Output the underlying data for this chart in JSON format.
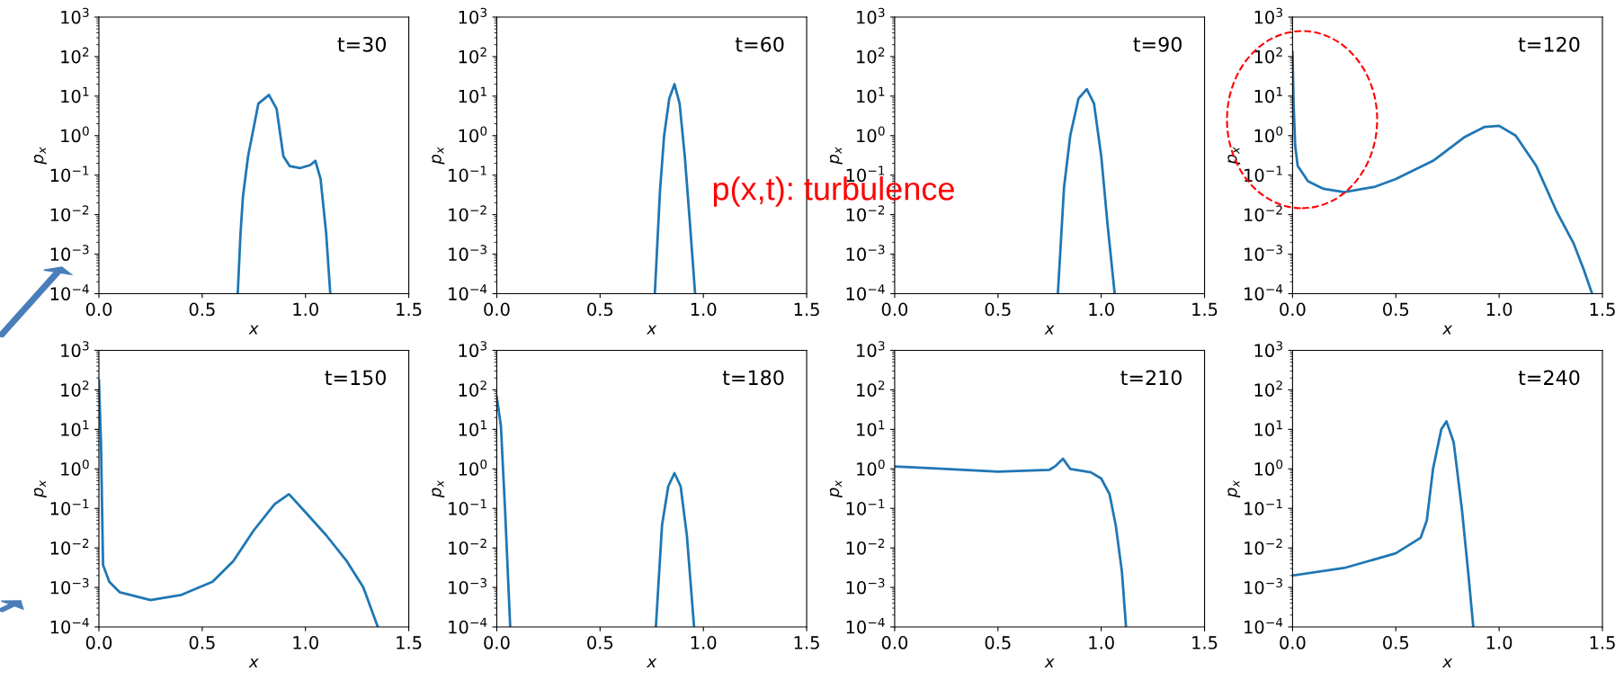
{
  "chart_data": [
    {
      "type": "line",
      "log": "y",
      "xlabel": "x",
      "ylabel": "p$_{x}$",
      "annotations": [
        "t=30"
      ],
      "xlim": [
        0,
        1.5
      ],
      "xticks": [
        {
          "value": 0,
          "label": "0.0"
        },
        {
          "value": 0.5,
          "label": "0.5"
        },
        {
          "value": 1.0,
          "label": "1.0"
        },
        {
          "value": 1.5,
          "label": "1.5"
        }
      ],
      "ylim": [
        0.0001,
        1000
      ],
      "yticks": [
        {
          "value": 0.0001,
          "label": "10$^{−4}$"
        },
        {
          "value": 0.001,
          "label": "10$^{−3}$"
        },
        {
          "value": 0.01,
          "label": "10$^{−2}$"
        },
        {
          "value": 0.1,
          "label": "10$^{−1}$"
        },
        {
          "value": 1,
          "label": "10$^{0}$"
        },
        {
          "value": 10,
          "label": "10$^{1}$"
        },
        {
          "value": 100,
          "label": "10$^{2}$"
        },
        {
          "value": 1000,
          "label": "10$^{3}$"
        }
      ],
      "series": [
        {
          "color": "#1f77b4",
          "x": [
            0.672,
            0.685,
            0.697,
            0.722,
            0.772,
            0.823,
            0.86,
            0.893,
            0.923,
            0.973,
            1.023,
            1.048,
            1.073,
            1.1,
            1.12
          ],
          "values": [
            0.0001,
            0.003,
            0.028,
            0.3,
            6.5,
            10.7,
            4.8,
            0.3,
            0.17,
            0.15,
            0.18,
            0.23,
            0.08,
            0.0034,
            0.0001
          ]
        }
      ]
    },
    {
      "type": "line",
      "log": "y",
      "xlabel": "x",
      "ylabel": "p$_{x}$",
      "annotations": [
        "t=60",
        "p(x,t): turbulence"
      ],
      "xlim": [
        0,
        1.5
      ],
      "xticks": [
        {
          "value": 0,
          "label": "0.0"
        },
        {
          "value": 0.5,
          "label": "0.5"
        },
        {
          "value": 1.0,
          "label": "1.0"
        },
        {
          "value": 1.5,
          "label": "1.5"
        }
      ],
      "ylim": [
        0.0001,
        1000
      ],
      "yticks": [
        {
          "value": 0.0001,
          "label": "10$^{−4}$"
        },
        {
          "value": 0.001,
          "label": "10$^{−3}$"
        },
        {
          "value": 0.01,
          "label": "10$^{−2}$"
        },
        {
          "value": 0.1,
          "label": "10$^{−1}$"
        },
        {
          "value": 1,
          "label": "10$^{0}$"
        },
        {
          "value": 10,
          "label": "10$^{1}$"
        },
        {
          "value": 100,
          "label": "10$^{2}$"
        },
        {
          "value": 1000,
          "label": "10$^{3}$"
        }
      ],
      "series": [
        {
          "color": "#1f77b4",
          "x": [
            0.765,
            0.79,
            0.81,
            0.835,
            0.86,
            0.885,
            0.91,
            0.935,
            0.96
          ],
          "values": [
            0.0001,
            0.04,
            1,
            8.7,
            20,
            6.5,
            0.3,
            0.006,
            0.0001
          ]
        }
      ]
    },
    {
      "type": "line",
      "log": "y",
      "xlabel": "x",
      "ylabel": "p$_{x}$",
      "annotations": [
        "t=90"
      ],
      "xlim": [
        0,
        1.5
      ],
      "xticks": [
        {
          "value": 0,
          "label": "0.0"
        },
        {
          "value": 0.5,
          "label": "0.5"
        },
        {
          "value": 1.0,
          "label": "1.0"
        },
        {
          "value": 1.5,
          "label": "1.5"
        }
      ],
      "ylim": [
        0.0001,
        1000
      ],
      "yticks": [
        {
          "value": 0.0001,
          "label": "10$^{−4}$"
        },
        {
          "value": 0.001,
          "label": "10$^{−3}$"
        },
        {
          "value": 0.01,
          "label": "10$^{−2}$"
        },
        {
          "value": 0.1,
          "label": "10$^{−1}$"
        },
        {
          "value": 1,
          "label": "10$^{0}$"
        },
        {
          "value": 10,
          "label": "10$^{1}$"
        },
        {
          "value": 100,
          "label": "10$^{2}$"
        },
        {
          "value": 1000,
          "label": "10$^{3}$"
        }
      ],
      "series": [
        {
          "color": "#1f77b4",
          "x": [
            0.79,
            0.82,
            0.85,
            0.89,
            0.93,
            0.965,
            1.0,
            1.03,
            1.065
          ],
          "values": [
            0.0001,
            0.05,
            1,
            8.7,
            15,
            6.5,
            0.3,
            0.006,
            0.0001
          ]
        }
      ]
    },
    {
      "type": "line",
      "log": "y",
      "xlabel": "x",
      "ylabel": "p$_{x}$",
      "annotations": [
        "t=120"
      ],
      "xlim": [
        0,
        1.5
      ],
      "xticks": [
        {
          "value": 0,
          "label": "0.0"
        },
        {
          "value": 0.5,
          "label": "0.5"
        },
        {
          "value": 1.0,
          "label": "1.0"
        },
        {
          "value": 1.5,
          "label": "1.5"
        }
      ],
      "ylim": [
        0.0001,
        1000
      ],
      "yticks": [
        {
          "value": 0.0001,
          "label": "10$^{−4}$"
        },
        {
          "value": 0.001,
          "label": "10$^{−3}$"
        },
        {
          "value": 0.01,
          "label": "10$^{−2}$"
        },
        {
          "value": 0.1,
          "label": "10$^{−1}$"
        },
        {
          "value": 1,
          "label": "10$^{0}$"
        },
        {
          "value": 10,
          "label": "10$^{1}$"
        },
        {
          "value": 100,
          "label": "10$^{2}$"
        },
        {
          "value": 1000,
          "label": "10$^{3}$"
        }
      ],
      "series": [
        {
          "color": "#1f77b4",
          "x": [
            0,
            0.005,
            0.0125,
            0.025,
            0.075,
            0.15,
            0.25,
            0.4,
            0.5,
            0.68,
            0.83,
            0.93,
            1.0,
            1.08,
            1.18,
            1.28,
            1.36,
            1.41,
            1.45
          ],
          "values": [
            130,
            6.5,
            0.57,
            0.17,
            0.07,
            0.045,
            0.037,
            0.051,
            0.08,
            0.23,
            0.9,
            1.66,
            1.77,
            1.0,
            0.17,
            0.0115,
            0.0019,
            0.0004,
            0.0001
          ]
        }
      ]
    },
    {
      "type": "line",
      "log": "y",
      "xlabel": "x",
      "ylabel": "p$_{x}$",
      "annotations": [
        "t=150"
      ],
      "xlim": [
        0,
        1.5
      ],
      "xticks": [
        {
          "value": 0,
          "label": "0.0"
        },
        {
          "value": 0.5,
          "label": "0.5"
        },
        {
          "value": 1.0,
          "label": "1.0"
        },
        {
          "value": 1.5,
          "label": "1.5"
        }
      ],
      "ylim": [
        0.0001,
        1000
      ],
      "yticks": [
        {
          "value": 0.0001,
          "label": "10$^{−4}$"
        },
        {
          "value": 0.001,
          "label": "10$^{−3}$"
        },
        {
          "value": 0.01,
          "label": "10$^{−2}$"
        },
        {
          "value": 0.1,
          "label": "10$^{−1}$"
        },
        {
          "value": 1,
          "label": "10$^{0}$"
        },
        {
          "value": 10,
          "label": "10$^{1}$"
        },
        {
          "value": 100,
          "label": "10$^{2}$"
        },
        {
          "value": 1000,
          "label": "10$^{3}$"
        }
      ],
      "series": [
        {
          "color": "#1f77b4",
          "x": [
            0,
            0.01,
            0.02,
            0.05,
            0.1,
            0.25,
            0.4,
            0.55,
            0.65,
            0.75,
            0.85,
            0.92,
            1.0,
            1.1,
            1.2,
            1.28,
            1.35
          ],
          "values": [
            175,
            4.7,
            0.0037,
            0.0014,
            0.00076,
            0.00048,
            0.00065,
            0.0014,
            0.0046,
            0.028,
            0.127,
            0.23,
            0.08,
            0.021,
            0.0046,
            0.001,
            0.0001
          ]
        }
      ]
    },
    {
      "type": "line",
      "log": "y",
      "xlabel": "x",
      "ylabel": "p$_{x}$",
      "annotations": [
        "t=180"
      ],
      "xlim": [
        0,
        1.5
      ],
      "xticks": [
        {
          "value": 0,
          "label": "0.0"
        },
        {
          "value": 0.5,
          "label": "0.5"
        },
        {
          "value": 1.0,
          "label": "1.0"
        },
        {
          "value": 1.5,
          "label": "1.5"
        }
      ],
      "ylim": [
        0.0001,
        1000
      ],
      "yticks": [
        {
          "value": 0.0001,
          "label": "10$^{−4}$"
        },
        {
          "value": 0.001,
          "label": "10$^{−3}$"
        },
        {
          "value": 0.01,
          "label": "10$^{−2}$"
        },
        {
          "value": 0.1,
          "label": "10$^{−1}$"
        },
        {
          "value": 1,
          "label": "10$^{0}$"
        },
        {
          "value": 10,
          "label": "10$^{1}$"
        },
        {
          "value": 100,
          "label": "10$^{2}$"
        },
        {
          "value": 1000,
          "label": "10$^{3}$"
        }
      ],
      "series": [
        {
          "color": "#1f77b4",
          "x": [
            0,
            0.02,
            0.04,
            0.065,
            null,
            0.77,
            0.8,
            0.83,
            0.86,
            0.89,
            0.92,
            0.955
          ],
          "values": [
            66,
            12,
            0.093,
            0.0001,
            null,
            0.0001,
            0.038,
            0.36,
            0.78,
            0.36,
            0.021,
            0.0001
          ]
        }
      ]
    },
    {
      "type": "line",
      "log": "y",
      "xlabel": "x",
      "ylabel": "p$_{x}$",
      "annotations": [
        "t=210"
      ],
      "xlim": [
        0,
        1.5
      ],
      "xticks": [
        {
          "value": 0,
          "label": "0.0"
        },
        {
          "value": 0.5,
          "label": "0.5"
        },
        {
          "value": 1.0,
          "label": "1.0"
        },
        {
          "value": 1.5,
          "label": "1.5"
        }
      ],
      "ylim": [
        0.0001,
        1000
      ],
      "yticks": [
        {
          "value": 0.0001,
          "label": "10$^{−4}$"
        },
        {
          "value": 0.001,
          "label": "10$^{−3}$"
        },
        {
          "value": 0.01,
          "label": "10$^{−2}$"
        },
        {
          "value": 0.1,
          "label": "10$^{−1}$"
        },
        {
          "value": 1,
          "label": "10$^{0}$"
        },
        {
          "value": 10,
          "label": "10$^{1}$"
        },
        {
          "value": 100,
          "label": "10$^{2}$"
        },
        {
          "value": 1000,
          "label": "10$^{3}$"
        }
      ],
      "series": [
        {
          "color": "#1f77b4",
          "x": [
            0,
            0.25,
            0.5,
            0.75,
            0.78,
            0.815,
            0.85,
            0.95,
            1.0,
            1.04,
            1.07,
            1.1,
            1.12
          ],
          "values": [
            1.15,
            1.0,
            0.85,
            0.95,
            1.2,
            1.8,
            1.0,
            0.82,
            0.57,
            0.23,
            0.038,
            0.0025,
            0.0001
          ]
        }
      ]
    },
    {
      "type": "line",
      "log": "y",
      "xlabel": "x",
      "ylabel": "p$_{x}$",
      "annotations": [
        "t=240"
      ],
      "xlim": [
        0,
        1.5
      ],
      "xticks": [
        {
          "value": 0,
          "label": "0.0"
        },
        {
          "value": 0.5,
          "label": "0.5"
        },
        {
          "value": 1.0,
          "label": "1.0"
        },
        {
          "value": 1.5,
          "label": "1.5"
        }
      ],
      "ylim": [
        0.0001,
        1000
      ],
      "yticks": [
        {
          "value": 0.0001,
          "label": "10$^{−4}$"
        },
        {
          "value": 0.001,
          "label": "10$^{−3}$"
        },
        {
          "value": 0.01,
          "label": "10$^{−2}$"
        },
        {
          "value": 0.1,
          "label": "10$^{−1}$"
        },
        {
          "value": 1,
          "label": "10$^{0}$"
        },
        {
          "value": 10,
          "label": "10$^{1}$"
        },
        {
          "value": 100,
          "label": "10$^{2}$"
        },
        {
          "value": 1000,
          "label": "10$^{3}$"
        }
      ],
      "series": [
        {
          "color": "#1f77b4",
          "x": [
            0,
            0.25,
            0.5,
            0.62,
            0.65,
            0.68,
            0.72,
            0.745,
            0.78,
            0.82,
            0.85,
            0.875
          ],
          "values": [
            0.002,
            0.0031,
            0.0073,
            0.018,
            0.05,
            1,
            10,
            16,
            4.7,
            0.093,
            0.0025,
            0.0001
          ]
        }
      ]
    }
  ]
}
